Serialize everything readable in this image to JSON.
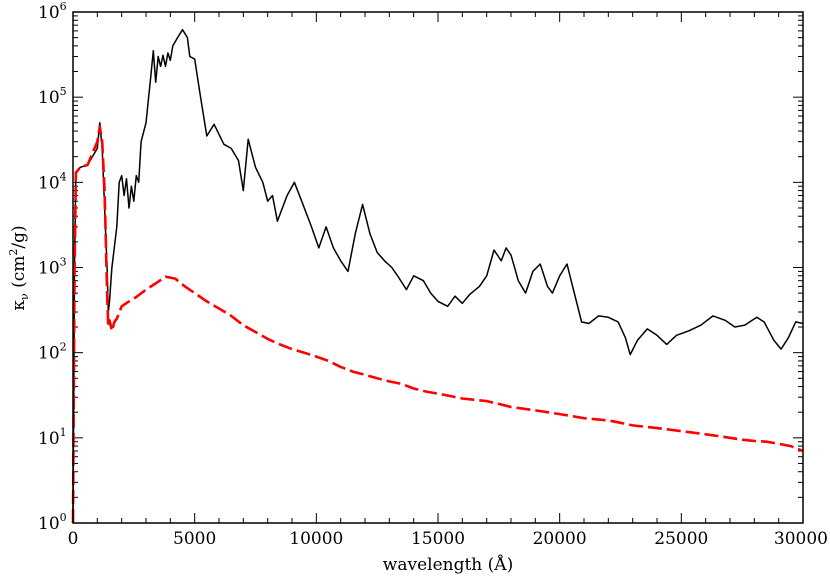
{
  "chart_data": {
    "type": "line",
    "title": "",
    "xlabel": "wavelength (Å)",
    "ylabel": {
      "main": "κ",
      "sub": "ν",
      "unit_open": " (cm",
      "unit_sup": "2",
      "unit_close": "/g)"
    },
    "xlim": [
      0,
      30000
    ],
    "ylim": [
      1,
      1000000
    ],
    "yscale": "log",
    "grid": false,
    "legend": "none",
    "x_ticks": [
      0,
      5000,
      10000,
      15000,
      20000,
      25000,
      30000
    ],
    "x_tick_labels": [
      "0",
      "5000",
      "10000",
      "15000",
      "20000",
      "25000",
      "30000"
    ],
    "y_ticks": [
      1,
      10,
      100,
      1000,
      10000,
      100000,
      1000000
    ],
    "y_tick_labels": [
      {
        "base": "10",
        "exp": "0"
      },
      {
        "base": "10",
        "exp": "1"
      },
      {
        "base": "10",
        "exp": "2"
      },
      {
        "base": "10",
        "exp": "3"
      },
      {
        "base": "10",
        "exp": "4"
      },
      {
        "base": "10",
        "exp": "5"
      },
      {
        "base": "10",
        "exp": "6"
      }
    ],
    "series": [
      {
        "style": "solid",
        "color": "#000000",
        "points": [
          [
            0,
            1
          ],
          [
            60,
            1000
          ],
          [
            120,
            13000
          ],
          [
            300,
            15000
          ],
          [
            600,
            16000
          ],
          [
            1000,
            25000
          ],
          [
            1100,
            50000
          ],
          [
            1200,
            25000
          ],
          [
            1300,
            5000
          ],
          [
            1400,
            1000
          ],
          [
            1450,
            300
          ],
          [
            1500,
            400
          ],
          [
            1600,
            1000
          ],
          [
            1800,
            3000
          ],
          [
            1900,
            10000
          ],
          [
            2000,
            12000
          ],
          [
            2100,
            7000
          ],
          [
            2200,
            11000
          ],
          [
            2300,
            5000
          ],
          [
            2400,
            9000
          ],
          [
            2500,
            6000
          ],
          [
            2600,
            12000
          ],
          [
            2700,
            10000
          ],
          [
            2800,
            30000
          ],
          [
            3000,
            50000
          ],
          [
            3200,
            180000
          ],
          [
            3300,
            350000
          ],
          [
            3400,
            150000
          ],
          [
            3500,
            300000
          ],
          [
            3600,
            230000
          ],
          [
            3700,
            310000
          ],
          [
            3800,
            230000
          ],
          [
            3900,
            330000
          ],
          [
            4000,
            270000
          ],
          [
            4100,
            400000
          ],
          [
            4300,
            500000
          ],
          [
            4500,
            620000
          ],
          [
            4700,
            500000
          ],
          [
            4800,
            300000
          ],
          [
            5000,
            280000
          ],
          [
            5200,
            120000
          ],
          [
            5500,
            35000
          ],
          [
            5800,
            48000
          ],
          [
            6200,
            28000
          ],
          [
            6500,
            25000
          ],
          [
            6800,
            18000
          ],
          [
            7000,
            8000
          ],
          [
            7200,
            32000
          ],
          [
            7500,
            15000
          ],
          [
            7800,
            10000
          ],
          [
            8000,
            6000
          ],
          [
            8200,
            7000
          ],
          [
            8400,
            3500
          ],
          [
            8800,
            7000
          ],
          [
            9100,
            10000
          ],
          [
            9400,
            6000
          ],
          [
            9800,
            3000
          ],
          [
            10100,
            1700
          ],
          [
            10400,
            3000
          ],
          [
            10700,
            1700
          ],
          [
            11000,
            1200
          ],
          [
            11300,
            900
          ],
          [
            11600,
            2500
          ],
          [
            11900,
            5500
          ],
          [
            12200,
            2500
          ],
          [
            12500,
            1500
          ],
          [
            12800,
            1200
          ],
          [
            13100,
            1000
          ],
          [
            13400,
            750
          ],
          [
            13700,
            550
          ],
          [
            14000,
            800
          ],
          [
            14400,
            700
          ],
          [
            14700,
            500
          ],
          [
            15000,
            400
          ],
          [
            15400,
            350
          ],
          [
            15700,
            460
          ],
          [
            16000,
            380
          ],
          [
            16300,
            480
          ],
          [
            16700,
            600
          ],
          [
            17000,
            800
          ],
          [
            17300,
            1600
          ],
          [
            17600,
            1200
          ],
          [
            17800,
            1700
          ],
          [
            18000,
            1400
          ],
          [
            18300,
            700
          ],
          [
            18600,
            500
          ],
          [
            18900,
            900
          ],
          [
            19200,
            1100
          ],
          [
            19500,
            600
          ],
          [
            19700,
            500
          ],
          [
            20000,
            800
          ],
          [
            20300,
            1100
          ],
          [
            20600,
            500
          ],
          [
            20900,
            230
          ],
          [
            21200,
            220
          ],
          [
            21600,
            270
          ],
          [
            22000,
            260
          ],
          [
            22400,
            230
          ],
          [
            22700,
            150
          ],
          [
            22900,
            95
          ],
          [
            23200,
            140
          ],
          [
            23600,
            190
          ],
          [
            24000,
            160
          ],
          [
            24400,
            125
          ],
          [
            24800,
            160
          ],
          [
            25300,
            180
          ],
          [
            25800,
            210
          ],
          [
            26300,
            270
          ],
          [
            26800,
            240
          ],
          [
            27200,
            200
          ],
          [
            27600,
            210
          ],
          [
            28100,
            260
          ],
          [
            28400,
            230
          ],
          [
            28800,
            140
          ],
          [
            29100,
            110
          ],
          [
            29400,
            150
          ],
          [
            29700,
            230
          ],
          [
            30000,
            220
          ]
        ]
      },
      {
        "style": "dashed",
        "color": "#ff0000",
        "points": [
          [
            0,
            1
          ],
          [
            60,
            800
          ],
          [
            120,
            13000
          ],
          [
            300,
            15000
          ],
          [
            600,
            16000
          ],
          [
            1000,
            30000
          ],
          [
            1100,
            45000
          ],
          [
            1200,
            30000
          ],
          [
            1300,
            8000
          ],
          [
            1400,
            500
          ],
          [
            1450,
            200
          ],
          [
            1500,
            240
          ],
          [
            1600,
            180
          ],
          [
            1700,
            230
          ],
          [
            1800,
            250
          ],
          [
            2000,
            350
          ],
          [
            2300,
            400
          ],
          [
            2600,
            450
          ],
          [
            3000,
            550
          ],
          [
            3400,
            650
          ],
          [
            3800,
            780
          ],
          [
            4200,
            740
          ],
          [
            4600,
            600
          ],
          [
            5000,
            500
          ],
          [
            5500,
            400
          ],
          [
            6000,
            330
          ],
          [
            6500,
            270
          ],
          [
            7000,
            210
          ],
          [
            7500,
            175
          ],
          [
            8000,
            145
          ],
          [
            8500,
            125
          ],
          [
            9000,
            110
          ],
          [
            9500,
            100
          ],
          [
            10000,
            90
          ],
          [
            10500,
            80
          ],
          [
            11000,
            68
          ],
          [
            11500,
            60
          ],
          [
            12000,
            55
          ],
          [
            12500,
            50
          ],
          [
            13000,
            46
          ],
          [
            13500,
            43
          ],
          [
            14000,
            38
          ],
          [
            14500,
            35
          ],
          [
            15000,
            33
          ],
          [
            15500,
            31
          ],
          [
            16000,
            29
          ],
          [
            16500,
            28
          ],
          [
            17000,
            27
          ],
          [
            17500,
            25
          ],
          [
            18000,
            23
          ],
          [
            18500,
            22
          ],
          [
            19000,
            21
          ],
          [
            19500,
            20
          ],
          [
            20000,
            19
          ],
          [
            20500,
            18
          ],
          [
            21000,
            17
          ],
          [
            21500,
            16.5
          ],
          [
            22000,
            16
          ],
          [
            22500,
            15
          ],
          [
            23000,
            14
          ],
          [
            23500,
            13.5
          ],
          [
            24000,
            13
          ],
          [
            24500,
            12.5
          ],
          [
            25000,
            12
          ],
          [
            25500,
            11.5
          ],
          [
            26000,
            11
          ],
          [
            26500,
            10.5
          ],
          [
            27000,
            10
          ],
          [
            27500,
            9.5
          ],
          [
            28000,
            9.2
          ],
          [
            28500,
            9
          ],
          [
            29000,
            8.5
          ],
          [
            29500,
            8
          ],
          [
            30000,
            7
          ]
        ]
      }
    ]
  }
}
